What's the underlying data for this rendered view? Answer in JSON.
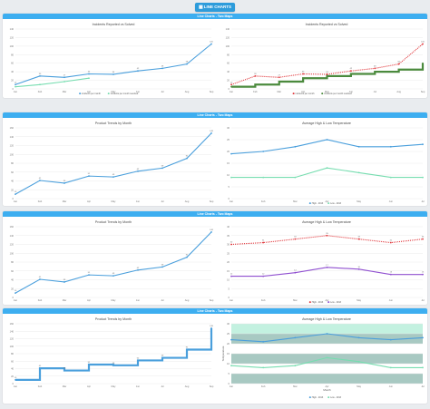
{
  "top_button": {
    "label": "LINE CHARTS",
    "icon": "grid-icon"
  },
  "panels": [
    {
      "header": "Line Charts - Two Maps"
    },
    {
      "header": "Line Charts - Two Maps"
    },
    {
      "header": "Line Charts - Two Maps"
    },
    {
      "header": "Line Charts - Two Maps"
    }
  ],
  "colors": {
    "blue": "#4a9fdc",
    "mint": "#77ddb0",
    "red": "#e0353a",
    "green": "#4b8a3d",
    "purple": "#9050d0",
    "header": "#3daef0"
  },
  "chart_data": [
    {
      "type": "line",
      "title": "Incidents Reported vs Solved",
      "categories": [
        "Jan",
        "Feb",
        "Mar",
        "Apr",
        "May",
        "Jun",
        "Jul",
        "Aug",
        "Sep"
      ],
      "ylim": [
        0,
        140
      ],
      "yticks": [
        0,
        20,
        40,
        60,
        80,
        100,
        120,
        140
      ],
      "ytick_labels": [
        "0",
        "20",
        "40",
        "60",
        "80",
        "100",
        "120",
        "140"
      ],
      "legend": "bottom",
      "series": [
        {
          "name": "incidents per month",
          "values": [
            10,
            30,
            27,
            35,
            34,
            42,
            48,
            58,
            105
          ],
          "data_labels": [
            "10",
            "30",
            "27",
            "35",
            "34",
            "42",
            "48",
            "58",
            "105"
          ],
          "style": "line",
          "color": "#4a9fdc"
        },
        {
          "name": "incidents per month resolved",
          "values": [
            5,
            10,
            17,
            25,
            null,
            null,
            null,
            null,
            null
          ],
          "style": "line",
          "color": "#77ddb0"
        }
      ]
    },
    {
      "type": "line",
      "title": "Incidents Reported vs Solved",
      "categories": [
        "Jan",
        "Feb",
        "Mar",
        "Apr",
        "May",
        "Jun",
        "Jul",
        "Aug",
        "Sep"
      ],
      "ylim": [
        0,
        140
      ],
      "yticks": [
        0,
        20,
        40,
        60,
        80,
        100,
        120,
        140
      ],
      "ytick_labels": [
        "0",
        "20",
        "40",
        "60",
        "80",
        "100",
        "120",
        "140"
      ],
      "legend": "bottom",
      "series": [
        {
          "name": "incidents per month",
          "values": [
            10,
            30,
            27,
            35,
            34,
            42,
            48,
            58,
            105
          ],
          "data_labels": [
            "10",
            "30",
            "27",
            "35",
            "34",
            "42",
            "48",
            "58",
            "105"
          ],
          "style": "dotted",
          "color": "#e0353a"
        },
        {
          "name": "incidents per month resolved",
          "values": [
            5,
            10,
            17,
            25,
            30,
            35,
            40,
            45,
            60
          ],
          "style": "step",
          "color": "#4b8a3d"
        }
      ]
    },
    {
      "type": "line",
      "title": "Product Trends by Month",
      "categories": [
        "Jan",
        "Feb",
        "Mar",
        "Apr",
        "May",
        "Jun",
        "Jul",
        "Aug",
        "Sep"
      ],
      "ylim": [
        0,
        160
      ],
      "yticks": [
        0,
        20,
        40,
        60,
        80,
        100,
        120,
        140,
        160
      ],
      "ytick_labels": [
        "0",
        "20",
        "40",
        "60",
        "80",
        "100",
        "120",
        "140",
        "160"
      ],
      "series": [
        {
          "name": "",
          "values": [
            10,
            41,
            35,
            51,
            49,
            62,
            69,
            91,
            148
          ],
          "data_labels": [
            "10",
            "41",
            "35",
            "51",
            "49",
            "62",
            "69",
            "91",
            "148"
          ],
          "style": "line",
          "color": "#4a9fdc"
        }
      ]
    },
    {
      "type": "line",
      "title": "Average High & Low Temperature",
      "categories": [
        "Jan",
        "Feb",
        "Mar",
        "Apr",
        "May",
        "Jun",
        "Jul"
      ],
      "ylim": [
        0,
        30
      ],
      "yticks": [
        0,
        5,
        10,
        15,
        20,
        25,
        30
      ],
      "ytick_labels": [
        "0",
        "5",
        "10",
        "15",
        "20",
        "25",
        "30"
      ],
      "legend": "bottom",
      "series": [
        {
          "name": "High - 2013",
          "values": [
            19,
            20,
            22,
            25,
            22,
            22,
            23
          ],
          "style": "line",
          "color": "#4a9fdc"
        },
        {
          "name": "Low - 2013",
          "values": [
            9,
            9,
            9,
            13,
            11,
            9,
            9
          ],
          "style": "line",
          "color": "#77ddb0"
        }
      ]
    },
    {
      "type": "line",
      "title": "Product Trends by Month",
      "categories": [
        "Jan",
        "Feb",
        "Mar",
        "Apr",
        "May",
        "Jun",
        "Jul",
        "Aug",
        "Sep"
      ],
      "ylim": [
        0,
        160
      ],
      "yticks": [
        0,
        20,
        40,
        60,
        80,
        100,
        120,
        140,
        160
      ],
      "ytick_labels": [
        "0",
        "20",
        "40",
        "60",
        "80",
        "100",
        "120",
        "140",
        "160"
      ],
      "series": [
        {
          "name": "",
          "values": [
            10,
            41,
            35,
            51,
            49,
            62,
            69,
            91,
            148
          ],
          "data_labels": [
            "10",
            "41",
            "35",
            "51",
            "49",
            "62",
            "69",
            "91",
            "148"
          ],
          "style": "line",
          "color": "#4a9fdc"
        }
      ]
    },
    {
      "type": "line",
      "title": "Average High & Low Temperature",
      "categories": [
        "Jan",
        "Feb",
        "Mar",
        "Apr",
        "May",
        "Jun",
        "Jul"
      ],
      "ylim": [
        0,
        40
      ],
      "yticks": [
        0,
        5,
        10,
        15,
        20,
        25,
        30,
        35,
        40
      ],
      "ytick_labels": [
        "0",
        "5",
        "10",
        "15",
        "20",
        "25",
        "30",
        "35",
        "40"
      ],
      "legend": "bottom",
      "series": [
        {
          "name": "High - 2013",
          "values": [
            30,
            31,
            33,
            35,
            33,
            31,
            33
          ],
          "data_labels": [
            "30",
            "31",
            "33",
            "35",
            "33",
            "31",
            "33"
          ],
          "style": "dotted",
          "color": "#e0353a"
        },
        {
          "name": "Low - 2013",
          "values": [
            12,
            12,
            14,
            17,
            16,
            13,
            13
          ],
          "data_labels": [
            "12",
            "12",
            "14",
            "17",
            "16",
            "13",
            "13"
          ],
          "style": "line",
          "color": "#9050d0"
        }
      ]
    },
    {
      "type": "line",
      "title": "Product Trends by Month",
      "categories": [
        "Jan",
        "Feb",
        "Mar",
        "Apr",
        "May",
        "Jun",
        "Jul",
        "Aug",
        "Sep"
      ],
      "ylim": [
        0,
        160
      ],
      "yticks": [
        0,
        20,
        40,
        60,
        80,
        100,
        120,
        140,
        160
      ],
      "ytick_labels": [
        "0",
        "20",
        "40",
        "60",
        "80",
        "100",
        "120",
        "140",
        "160"
      ],
      "series": [
        {
          "name": "",
          "values": [
            10,
            41,
            35,
            51,
            49,
            62,
            69,
            91,
            148
          ],
          "data_labels": [
            "10",
            "41",
            "35",
            "51",
            "49",
            "62",
            "69",
            "91",
            "148"
          ],
          "style": "step",
          "color": "#4a9fdc"
        }
      ]
    },
    {
      "type": "line",
      "title": "Average High & Low Temperature",
      "categories": [
        "Jan",
        "Feb",
        "Mar",
        "Apr",
        "May",
        "Jun",
        "Jul"
      ],
      "ylim": [
        0,
        30
      ],
      "yticks": [
        0,
        5,
        10,
        15,
        20,
        25,
        30
      ],
      "ytick_labels": [
        "0",
        "5",
        "10",
        "15",
        "20",
        "25",
        "30"
      ],
      "xlabel": "Month",
      "ylabel": "Temperature",
      "legend": "bottom",
      "bands": [
        {
          "from": 0,
          "to": 5,
          "color": "#a8c9c2"
        },
        {
          "from": 10,
          "to": 15,
          "color": "#a8c9c2"
        },
        {
          "from": 20,
          "to": 25,
          "color": "#a8c9c2"
        },
        {
          "from": 25,
          "to": 30,
          "color": "#c3f1e0"
        }
      ],
      "series": [
        {
          "name": "High - 2013",
          "values": [
            22,
            21,
            23,
            25,
            23,
            22,
            23
          ],
          "style": "line",
          "color": "#4a9fdc"
        },
        {
          "name": "Low - 2013",
          "values": [
            9,
            8,
            9,
            13,
            11,
            8,
            8
          ],
          "style": "line",
          "color": "#77ddb0"
        }
      ]
    }
  ]
}
